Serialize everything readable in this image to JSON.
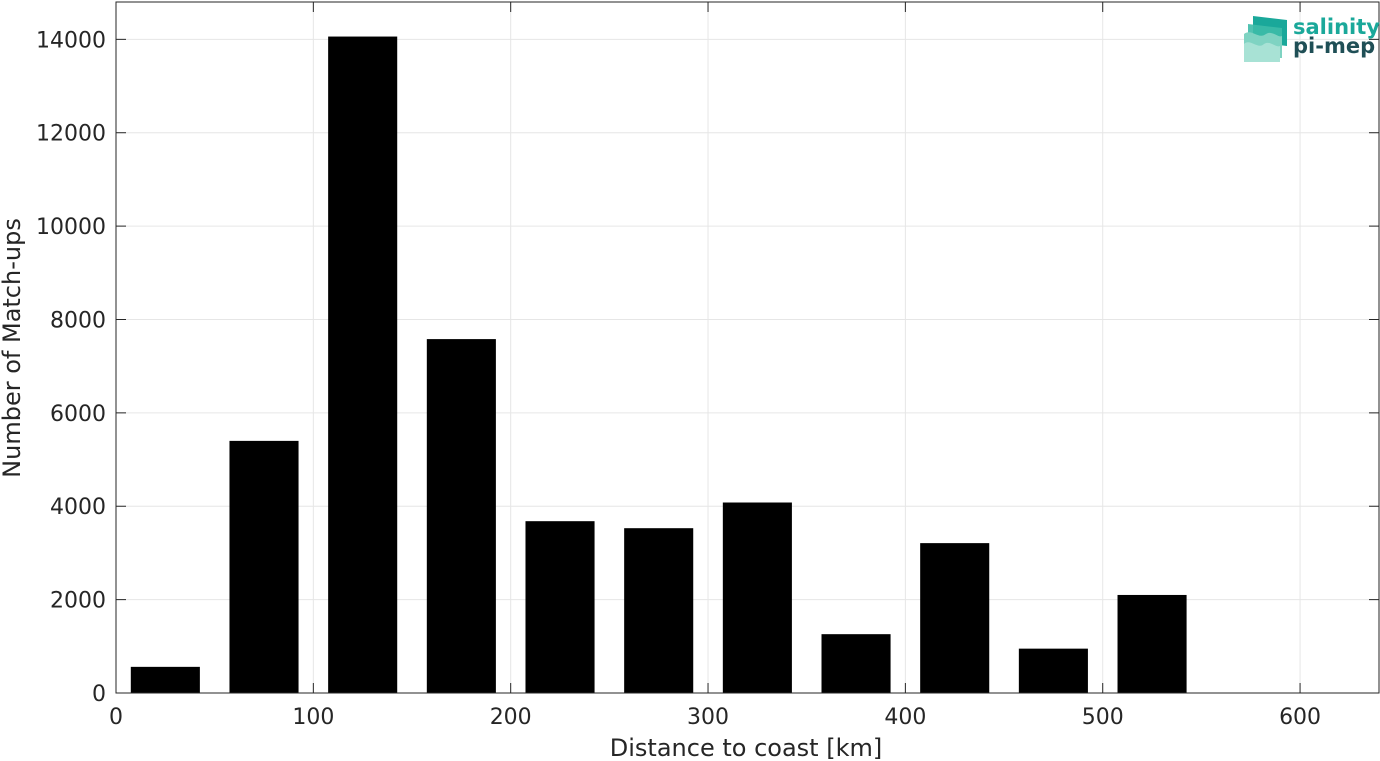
{
  "chart_data": {
    "type": "bar",
    "x": [
      25,
      75,
      125,
      175,
      225,
      275,
      325,
      375,
      425,
      475,
      525,
      575
    ],
    "values": [
      560,
      5400,
      14060,
      7580,
      3680,
      3530,
      4080,
      1260,
      3210,
      950,
      2100,
      0
    ],
    "bin_width": 50,
    "xlabel": "Distance to coast [km]",
    "ylabel": "Number of Match-ups",
    "xlim": [
      0,
      640
    ],
    "ylim": [
      0,
      14800
    ],
    "xticks": [
      0,
      100,
      200,
      300,
      400,
      500,
      600
    ],
    "yticks": [
      0,
      2000,
      4000,
      6000,
      8000,
      10000,
      12000,
      14000
    ],
    "bar_color": "#000000",
    "grid": true
  },
  "logo": {
    "line1": "salinity",
    "line2": "pi-mep",
    "color1": "#1aa89a",
    "color2": "#1f4f56"
  }
}
